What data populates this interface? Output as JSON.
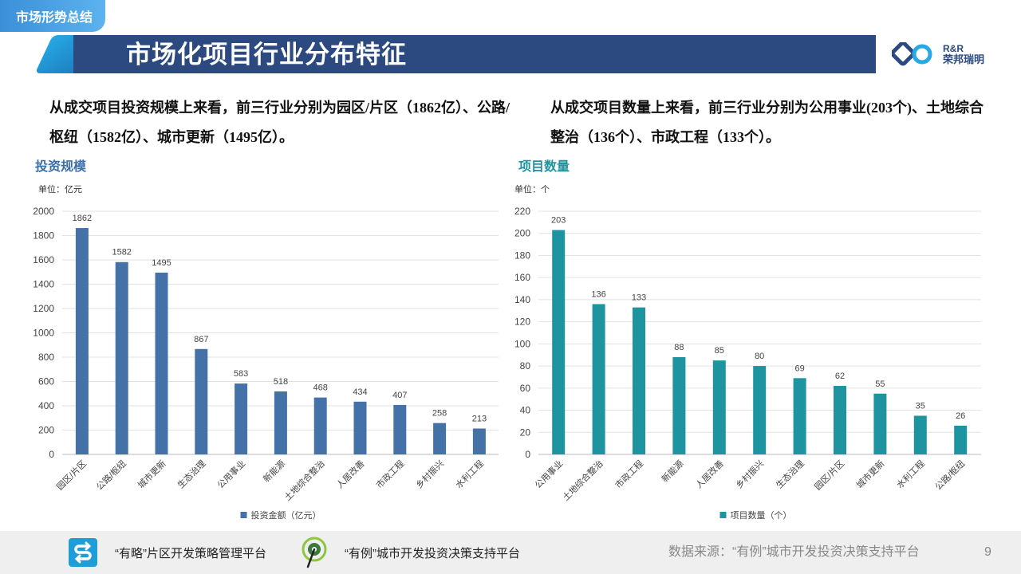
{
  "header": {
    "section_tab": "市场形势总结",
    "title": "市场化项目行业分布特征",
    "logo_en": "R&R",
    "logo_cn": "荣邦瑞明"
  },
  "summary": {
    "left": "从成交项目投资规模上来看，前三行业分别为园区/片区（1862亿）、公路/枢纽（1582亿）、城市更新（1495亿）。",
    "right": "从成交项目数量上来看，前三行业分别为公用事业(203个)、土地综合整治（136个）、市政工程（133个）。"
  },
  "chart_data": [
    {
      "type": "bar",
      "title": "投资规模",
      "unit": "单位：亿元",
      "categories": [
        "园区/片区",
        "公路/枢纽",
        "城市更新",
        "生态治理",
        "公用事业",
        "新能源",
        "土地综合整治",
        "人居改善",
        "市政工程",
        "乡村振兴",
        "水利工程"
      ],
      "series": [
        {
          "name": "投资金额（亿元）",
          "values": [
            1862,
            1582,
            1495,
            867,
            583,
            518,
            468,
            434,
            407,
            258,
            213
          ]
        }
      ],
      "ylim": [
        0,
        2000
      ],
      "yticks": [
        0,
        200,
        400,
        600,
        800,
        1000,
        1200,
        1400,
        1600,
        1800,
        2000
      ],
      "color": "#4472a8",
      "grid": true,
      "legend": "bottom"
    },
    {
      "type": "bar",
      "title": "项目数量",
      "unit": "单位：个",
      "categories": [
        "公用事业",
        "土地综合整治",
        "市政工程",
        "新能源",
        "人居改善",
        "乡村振兴",
        "生态治理",
        "园区/片区",
        "城市更新",
        "水利工程",
        "公路/枢纽"
      ],
      "series": [
        {
          "name": "项目数量（个）",
          "values": [
            203,
            136,
            133,
            88,
            85,
            80,
            69,
            62,
            55,
            35,
            26
          ]
        }
      ],
      "ylim": [
        0,
        220
      ],
      "yticks": [
        0,
        20,
        40,
        60,
        80,
        100,
        120,
        140,
        160,
        180,
        200,
        220
      ],
      "color": "#1d94a0",
      "grid": true,
      "legend": "bottom"
    }
  ],
  "footer": {
    "platform1": "“有略”片区开发策略管理平台",
    "platform2": "“有例”城市开发投资决策支持平台",
    "source": "数据来源：“有例”城市开发投资决策支持平台",
    "page": "9"
  },
  "colors": {
    "title_bar": "#2c4a80",
    "accent": "#27a9e6",
    "bar_left": "#4472a8",
    "bar_right": "#1d94a0"
  }
}
